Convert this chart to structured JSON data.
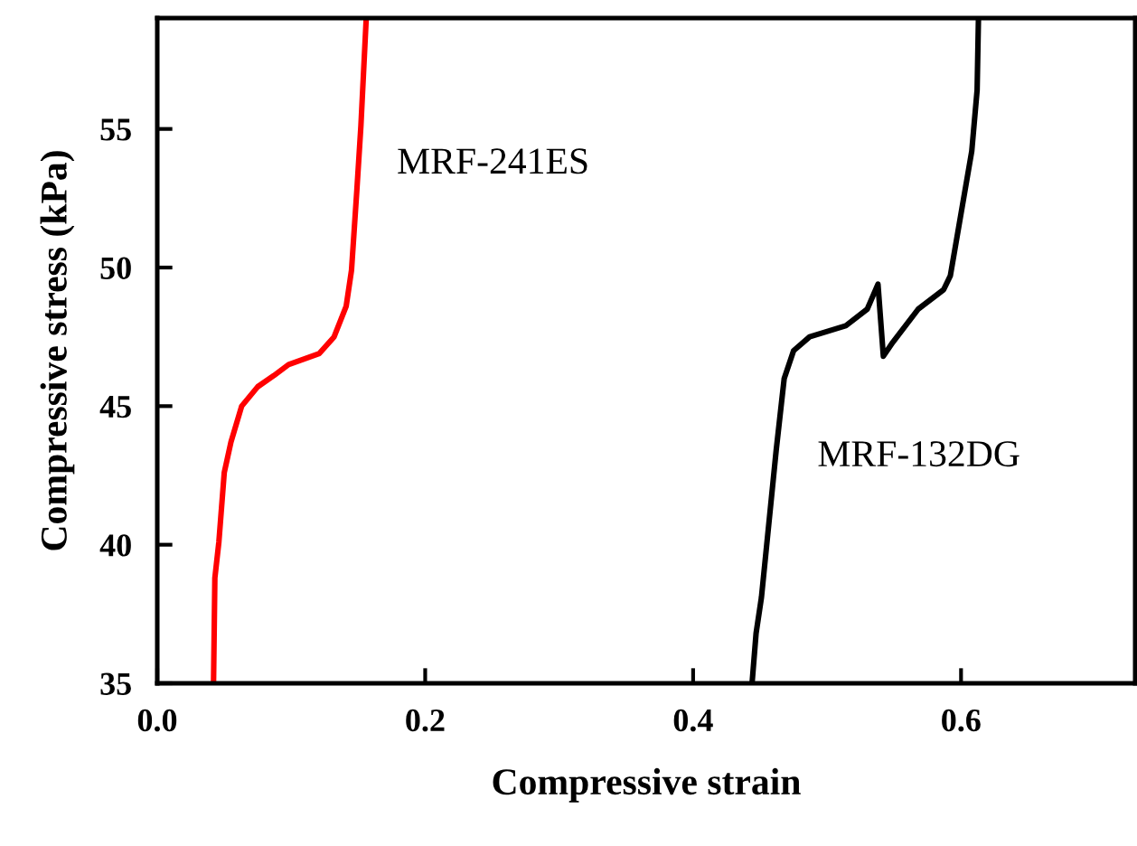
{
  "chart_data": {
    "type": "line",
    "xlabel": "Compressive strain",
    "ylabel": "Compressive stress (kPa)",
    "xlim": [
      0,
      0.73
    ],
    "ylim": [
      35,
      59
    ],
    "xticks": [
      {
        "value": 0,
        "label": "0.0"
      },
      0.2,
      0.4,
      0.6
    ],
    "yticks": [
      35,
      40,
      45,
      50,
      55
    ],
    "grid": false,
    "legend": false,
    "series": [
      {
        "name": "MRF-241ES",
        "color": "#ff0000",
        "x": [
          0.042,
          0.043,
          0.046,
          0.05,
          0.055,
          0.063,
          0.075,
          0.087,
          0.098,
          0.121,
          0.132,
          0.141,
          0.145,
          0.149,
          0.152,
          0.156
        ],
        "values": [
          35,
          38.8,
          40.1,
          42.6,
          43.7,
          45,
          45.7,
          46.1,
          46.5,
          46.9,
          47.5,
          48.6,
          49.9,
          52.8,
          55.1,
          59
        ]
      },
      {
        "name": "MRF-132DG",
        "color": "#000000",
        "x": [
          0.444,
          0.447,
          0.451,
          0.462,
          0.468,
          0.475,
          0.487,
          0.514,
          0.53,
          0.538,
          0.542,
          0.549,
          0.568,
          0.587,
          0.592,
          0.608,
          0.612,
          0.613
        ],
        "values": [
          35,
          36.8,
          38.1,
          43.4,
          46,
          47,
          47.5,
          47.9,
          48.5,
          49.4,
          46.8,
          47.3,
          48.5,
          49.2,
          49.7,
          54.2,
          56.4,
          59
        ]
      }
    ]
  }
}
